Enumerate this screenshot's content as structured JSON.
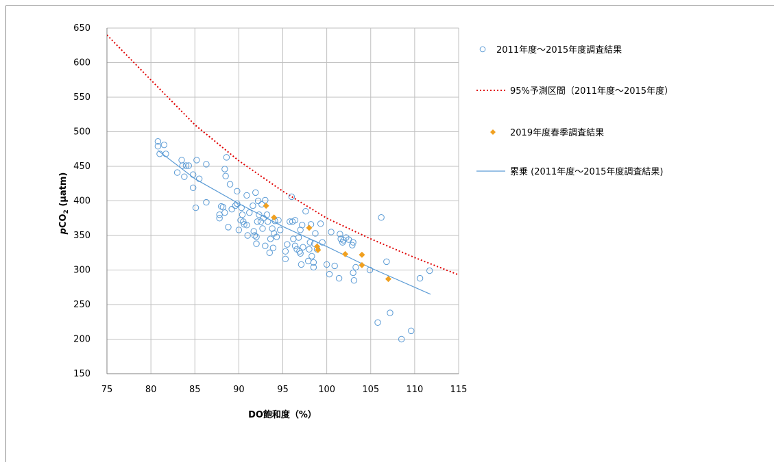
{
  "chart_data": {
    "type": "scatter",
    "xlabel": "DO飽和度（%）",
    "ylabel": "pCO₂ (µatm)",
    "ylabel_parts": {
      "italic": "p",
      "base": "CO",
      "sub": "2",
      "unit": " (µatm)"
    },
    "xlim": [
      75,
      115
    ],
    "ylim": [
      150,
      650
    ],
    "xticks": [
      "75",
      "80",
      "85",
      "90",
      "95",
      "100",
      "105",
      "110",
      "115"
    ],
    "yticks": [
      "150",
      "200",
      "250",
      "300",
      "350",
      "400",
      "450",
      "500",
      "550",
      "600",
      "650"
    ],
    "grid": true,
    "legend_position": "right",
    "colors": {
      "survey": "#5b9bd5",
      "interval": "#e00000",
      "spring2019": "#f0a020",
      "trend": "#5b9bd5"
    },
    "series": [
      {
        "name": "2011年度～2015年度調査結果",
        "kind": "scatter-open-circle",
        "points": [
          [
            80.8,
            486
          ],
          [
            81.5,
            481
          ],
          [
            80.8,
            479
          ],
          [
            81.0,
            468
          ],
          [
            81.7,
            468
          ],
          [
            83.0,
            441
          ],
          [
            83.5,
            459
          ],
          [
            83.6,
            451
          ],
          [
            84.0,
            451
          ],
          [
            84.3,
            451
          ],
          [
            83.8,
            435
          ],
          [
            84.8,
            438
          ],
          [
            85.2,
            459
          ],
          [
            85.5,
            432
          ],
          [
            84.8,
            419
          ],
          [
            85.1,
            390
          ],
          [
            86.3,
            453
          ],
          [
            86.3,
            398
          ],
          [
            87.8,
            380
          ],
          [
            87.8,
            375
          ],
          [
            88.0,
            392
          ],
          [
            88.2,
            391
          ],
          [
            88.4,
            446
          ],
          [
            88.6,
            463
          ],
          [
            88.5,
            436
          ],
          [
            88.8,
            362
          ],
          [
            88.4,
            383
          ],
          [
            89.0,
            424
          ],
          [
            89.2,
            388
          ],
          [
            89.6,
            393
          ],
          [
            89.8,
            396
          ],
          [
            89.8,
            414
          ],
          [
            90.0,
            358
          ],
          [
            90.2,
            372
          ],
          [
            90.3,
            390
          ],
          [
            90.4,
            380
          ],
          [
            90.5,
            370
          ],
          [
            90.6,
            366
          ],
          [
            90.9,
            365
          ],
          [
            90.9,
            408
          ],
          [
            91.0,
            350
          ],
          [
            91.2,
            383
          ],
          [
            91.6,
            393
          ],
          [
            91.7,
            356
          ],
          [
            91.8,
            350
          ],
          [
            91.9,
            412
          ],
          [
            92.0,
            338
          ],
          [
            92.0,
            348
          ],
          [
            92.1,
            370
          ],
          [
            92.2,
            400
          ],
          [
            92.3,
            380
          ],
          [
            92.5,
            370
          ],
          [
            92.6,
            395
          ],
          [
            92.7,
            360
          ],
          [
            92.8,
            375
          ],
          [
            93.0,
            401
          ],
          [
            93.0,
            335
          ],
          [
            93.2,
            380
          ],
          [
            93.3,
            370
          ],
          [
            93.5,
            325
          ],
          [
            93.6,
            345
          ],
          [
            93.8,
            360
          ],
          [
            93.9,
            332
          ],
          [
            94.0,
            353
          ],
          [
            94.1,
            371
          ],
          [
            94.3,
            348
          ],
          [
            94.5,
            372
          ],
          [
            94.7,
            358
          ],
          [
            95.3,
            327
          ],
          [
            95.3,
            316
          ],
          [
            95.5,
            337
          ],
          [
            95.8,
            370
          ],
          [
            96.0,
            406
          ],
          [
            96.1,
            370
          ],
          [
            96.2,
            345
          ],
          [
            96.4,
            372
          ],
          [
            96.4,
            335
          ],
          [
            96.6,
            330
          ],
          [
            96.8,
            347
          ],
          [
            96.9,
            327
          ],
          [
            97.0,
            358
          ],
          [
            97.0,
            324
          ],
          [
            97.1,
            308
          ],
          [
            97.2,
            365
          ],
          [
            97.3,
            333
          ],
          [
            97.6,
            385
          ],
          [
            97.9,
            313
          ],
          [
            98.0,
            330
          ],
          [
            98.1,
            340
          ],
          [
            98.2,
            366
          ],
          [
            98.3,
            320
          ],
          [
            98.5,
            304
          ],
          [
            98.5,
            311
          ],
          [
            98.6,
            338
          ],
          [
            98.7,
            353
          ],
          [
            98.9,
            330
          ],
          [
            99.3,
            367
          ],
          [
            99.5,
            340
          ],
          [
            100.0,
            308
          ],
          [
            100.3,
            294
          ],
          [
            100.5,
            355
          ],
          [
            100.9,
            306
          ],
          [
            101.4,
            288
          ],
          [
            101.5,
            352
          ],
          [
            101.6,
            345
          ],
          [
            101.8,
            340
          ],
          [
            101.9,
            343
          ],
          [
            102.2,
            347
          ],
          [
            102.5,
            344
          ],
          [
            102.9,
            336
          ],
          [
            103.0,
            340
          ],
          [
            103.0,
            296
          ],
          [
            103.1,
            285
          ],
          [
            103.3,
            304
          ],
          [
            104.9,
            300
          ],
          [
            105.8,
            224
          ],
          [
            106.2,
            376
          ],
          [
            106.8,
            312
          ],
          [
            107.2,
            238
          ],
          [
            108.5,
            200
          ],
          [
            109.6,
            212
          ],
          [
            110.6,
            288
          ],
          [
            111.7,
            299
          ]
        ]
      },
      {
        "name": "95%予測区間（2011年度～2015年度）",
        "kind": "dotted-curve",
        "points": [
          [
            75,
            640
          ],
          [
            80,
            575
          ],
          [
            85,
            510
          ],
          [
            90,
            458
          ],
          [
            95,
            414
          ],
          [
            100,
            375
          ],
          [
            105,
            345
          ],
          [
            110,
            318
          ],
          [
            115,
            293
          ]
        ]
      },
      {
        "name": "2019年度春季調査結果",
        "kind": "scatter-diamond",
        "points": [
          [
            93.1,
            393
          ],
          [
            94.0,
            376
          ],
          [
            98.0,
            361
          ],
          [
            98.9,
            334
          ],
          [
            99.0,
            329
          ],
          [
            102.1,
            323
          ],
          [
            104.0,
            322
          ],
          [
            104.0,
            307
          ],
          [
            107.0,
            287
          ]
        ]
      },
      {
        "name": "累乗 (2011年度～2015年度調査結果)",
        "kind": "trendline",
        "points": [
          [
            80.8,
            473
          ],
          [
            85,
            432
          ],
          [
            90,
            396
          ],
          [
            95,
            363
          ],
          [
            100,
            334
          ],
          [
            105,
            303
          ],
          [
            111.8,
            265
          ]
        ]
      }
    ]
  }
}
